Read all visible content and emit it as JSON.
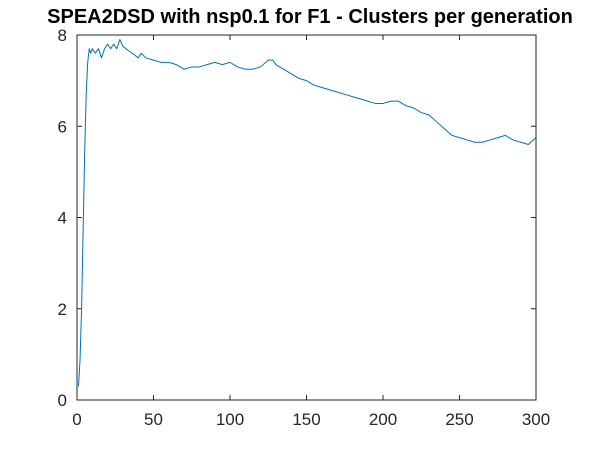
{
  "chart_data": {
    "type": "line",
    "title": "SPEA2DSD with nsp0.1 for F1 - Clusters per generation",
    "xlabel": "",
    "ylabel": "",
    "xlim": [
      0,
      300
    ],
    "ylim": [
      0,
      8
    ],
    "xticks": [
      "0",
      "50",
      "100",
      "150",
      "200",
      "250",
      "300"
    ],
    "yticks": [
      "0",
      "2",
      "4",
      "6",
      "8"
    ],
    "grid": false,
    "legend": "none",
    "line_color": "#0072bd",
    "series": [
      {
        "x": [
          1,
          2,
          3,
          4,
          5,
          6,
          7,
          8,
          9,
          10,
          12,
          14,
          16,
          18,
          20,
          22,
          24,
          26,
          28,
          30,
          32,
          34,
          36,
          38,
          40,
          42,
          45,
          50,
          55,
          60,
          65,
          70,
          75,
          80,
          85,
          90,
          95,
          100,
          105,
          110,
          115,
          120,
          125,
          128,
          130,
          135,
          140,
          145,
          150,
          155,
          160,
          165,
          170,
          175,
          180,
          185,
          190,
          195,
          200,
          205,
          210,
          215,
          220,
          225,
          230,
          235,
          240,
          245,
          250,
          255,
          260,
          265,
          270,
          275,
          280,
          285,
          290,
          295,
          300
        ],
        "y": [
          0.3,
          0.9,
          2.0,
          3.7,
          5.4,
          6.7,
          7.4,
          7.7,
          7.6,
          7.7,
          7.6,
          7.7,
          7.5,
          7.7,
          7.8,
          7.7,
          7.8,
          7.7,
          7.9,
          7.75,
          7.7,
          7.65,
          7.6,
          7.55,
          7.5,
          7.6,
          7.5,
          7.45,
          7.4,
          7.4,
          7.35,
          7.25,
          7.3,
          7.3,
          7.35,
          7.4,
          7.35,
          7.4,
          7.3,
          7.25,
          7.25,
          7.3,
          7.45,
          7.45,
          7.35,
          7.25,
          7.15,
          7.05,
          7.0,
          6.9,
          6.85,
          6.8,
          6.75,
          6.7,
          6.65,
          6.6,
          6.55,
          6.5,
          6.5,
          6.55,
          6.55,
          6.45,
          6.4,
          6.3,
          6.25,
          6.1,
          5.95,
          5.8,
          5.75,
          5.7,
          5.65,
          5.65,
          5.7,
          5.75,
          5.8,
          5.7,
          5.65,
          5.6,
          5.75
        ]
      }
    ]
  }
}
